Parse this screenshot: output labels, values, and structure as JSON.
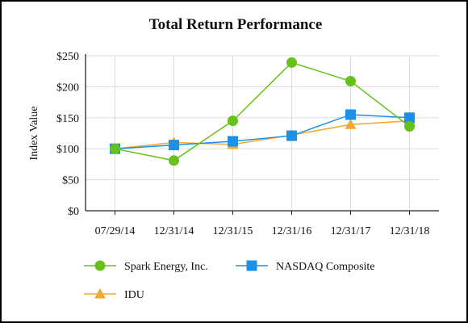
{
  "chart_data": {
    "type": "line",
    "title": "Total Return Performance",
    "xlabel": "",
    "ylabel": "Index Value",
    "categories": [
      "07/29/14",
      "12/31/14",
      "12/31/15",
      "12/31/16",
      "12/31/17",
      "12/31/18"
    ],
    "ylim": [
      0,
      250
    ],
    "yticks": [
      0,
      50,
      100,
      150,
      200,
      250
    ],
    "ytick_labels": [
      "$0",
      "$50",
      "$100",
      "$150",
      "$200",
      "$250"
    ],
    "grid": true,
    "legend_position": "bottom",
    "series": [
      {
        "name": "Spark Energy, Inc.",
        "marker": "circle",
        "color": "#66c21a",
        "values": [
          100,
          81,
          145,
          239,
          209,
          136
        ]
      },
      {
        "name": "NASDAQ Composite",
        "marker": "square",
        "color": "#1e90e6",
        "values": [
          100,
          106,
          112,
          121,
          155,
          150
        ]
      },
      {
        "name": "IDU",
        "marker": "triangle",
        "color": "#f0a830",
        "values": [
          100,
          110,
          107,
          122,
          139,
          145
        ]
      }
    ]
  }
}
